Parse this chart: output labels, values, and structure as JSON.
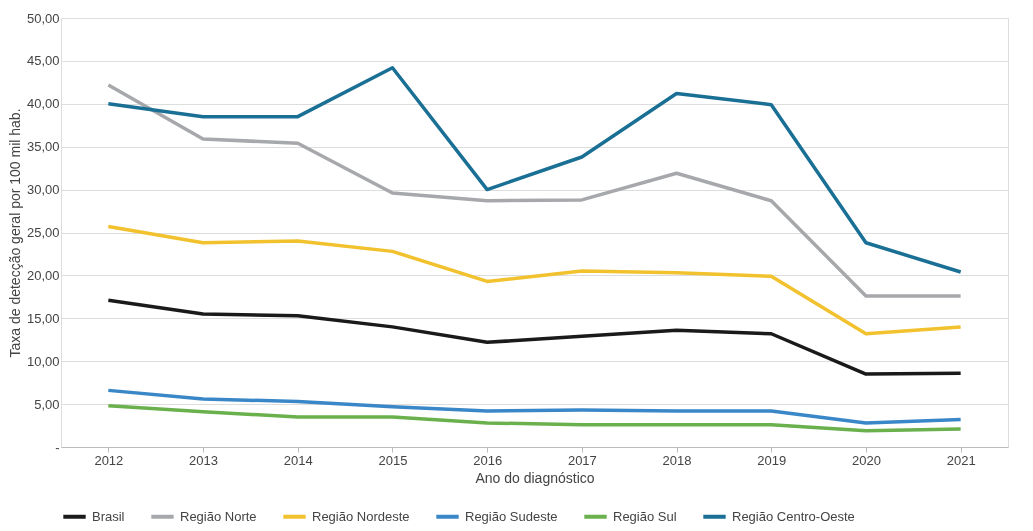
{
  "chart_data": {
    "type": "line",
    "xlabel": "Ano do diagnóstico",
    "ylabel": "Taxa de detecção geral por 100 mil hab.",
    "categories": [
      "2012",
      "2013",
      "2014",
      "2015",
      "2016",
      "2017",
      "2018",
      "2019",
      "2020",
      "2021"
    ],
    "ylim": [
      0,
      50
    ],
    "yticks": [
      {
        "value": 0,
        "label": "-"
      },
      {
        "value": 5,
        "label": "5,00"
      },
      {
        "value": 10,
        "label": "10,00"
      },
      {
        "value": 15,
        "label": "15,00"
      },
      {
        "value": 20,
        "label": "20,00"
      },
      {
        "value": 25,
        "label": "25,00"
      },
      {
        "value": 30,
        "label": "30,00"
      },
      {
        "value": 35,
        "label": "35,00"
      },
      {
        "value": 40,
        "label": "40,00"
      },
      {
        "value": 45,
        "label": "45,00"
      },
      {
        "value": 50,
        "label": "50,00"
      }
    ],
    "grid": "y",
    "legend": "bottom",
    "marker": "none",
    "line_style": "solid",
    "series": [
      {
        "name": "Brasil",
        "color": "#1a1a1a",
        "values": [
          17.1,
          15.5,
          15.3,
          14.0,
          12.2,
          12.9,
          13.6,
          13.2,
          8.5,
          8.6
        ]
      },
      {
        "name": "Região Norte",
        "color": "#a6a8ab",
        "values": [
          42.2,
          35.9,
          35.4,
          29.6,
          28.7,
          28.8,
          31.9,
          28.7,
          17.6,
          17.6
        ]
      },
      {
        "name": "Região Nordeste",
        "color": "#f2c12e",
        "values": [
          25.7,
          23.8,
          24.0,
          22.8,
          19.3,
          20.5,
          20.3,
          19.9,
          13.2,
          14.0
        ]
      },
      {
        "name": "Região Sudeste",
        "color": "#3a87c8",
        "values": [
          6.6,
          5.6,
          5.3,
          4.7,
          4.2,
          4.3,
          4.2,
          4.2,
          2.8,
          3.2
        ]
      },
      {
        "name": "Região Sul",
        "color": "#6ab04c",
        "values": [
          4.8,
          4.1,
          3.5,
          3.5,
          2.8,
          2.6,
          2.6,
          2.6,
          1.9,
          2.1
        ]
      },
      {
        "name": "Região Centro-Oeste",
        "color": "#1a6f95",
        "values": [
          40.0,
          38.5,
          38.5,
          44.2,
          30.0,
          33.8,
          41.2,
          39.9,
          23.8,
          20.4
        ]
      }
    ]
  }
}
